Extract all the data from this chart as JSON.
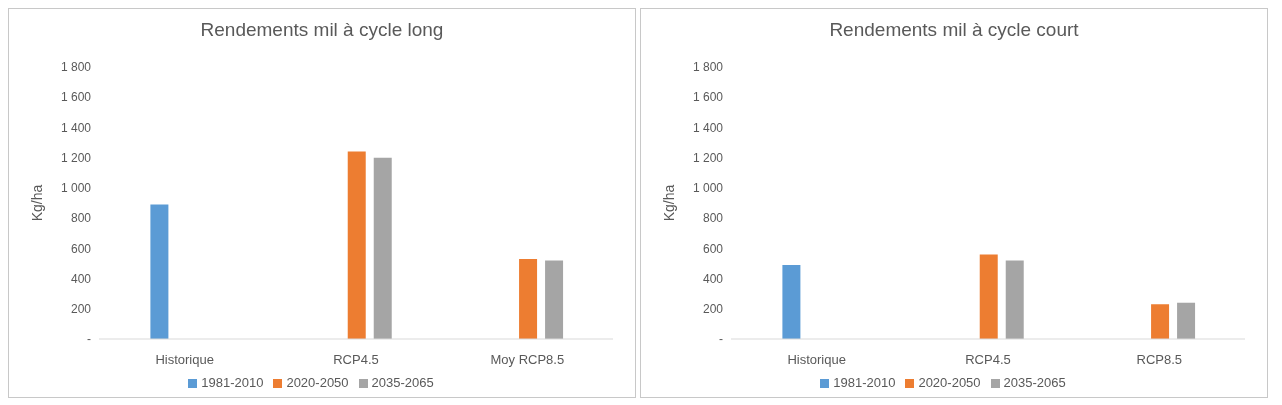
{
  "chart_data": [
    {
      "type": "bar",
      "title": "Rendements mil à cycle long",
      "ylabel": "Kg/ha",
      "categories": [
        "Historique",
        "RCP4.5",
        "Moy RCP8.5"
      ],
      "series": [
        {
          "name": "1981-2010",
          "color": "#5b9bd5",
          "values": [
            890,
            null,
            null
          ]
        },
        {
          "name": "2020-2050",
          "color": "#ed7d31",
          "values": [
            null,
            1240,
            530
          ]
        },
        {
          "name": "2035-2065",
          "color": "#a5a5a5",
          "values": [
            null,
            1200,
            520
          ]
        }
      ],
      "ylim": [
        0,
        1800
      ],
      "yticks": [
        {
          "value": 0,
          "label": "-"
        },
        200,
        400,
        600,
        800,
        {
          "value": 1000,
          "label": "1 000"
        },
        {
          "value": 1200,
          "label": "1 200"
        },
        {
          "value": 1400,
          "label": "1 400"
        },
        {
          "value": 1600,
          "label": "1 600"
        },
        {
          "value": 1800,
          "label": "1 800"
        }
      ],
      "grid": false,
      "legend": "bottom"
    },
    {
      "type": "bar",
      "title": "Rendements mil à cycle court",
      "ylabel": "Kg/ha",
      "categories": [
        "Historique",
        "RCP4.5",
        "RCP8.5"
      ],
      "series": [
        {
          "name": "1981-2010",
          "color": "#5b9bd5",
          "values": [
            490,
            null,
            null
          ]
        },
        {
          "name": "2020-2050",
          "color": "#ed7d31",
          "values": [
            null,
            560,
            230
          ]
        },
        {
          "name": "2035-2065",
          "color": "#a5a5a5",
          "values": [
            null,
            520,
            240
          ]
        }
      ],
      "ylim": [
        0,
        1800
      ],
      "yticks": [
        {
          "value": 0,
          "label": "-"
        },
        200,
        400,
        600,
        800,
        {
          "value": 1000,
          "label": "1 000"
        },
        {
          "value": 1200,
          "label": "1 200"
        },
        {
          "value": 1400,
          "label": "1 400"
        },
        {
          "value": 1600,
          "label": "1 600"
        },
        {
          "value": 1800,
          "label": "1 800"
        }
      ],
      "grid": false,
      "legend": "bottom"
    }
  ]
}
